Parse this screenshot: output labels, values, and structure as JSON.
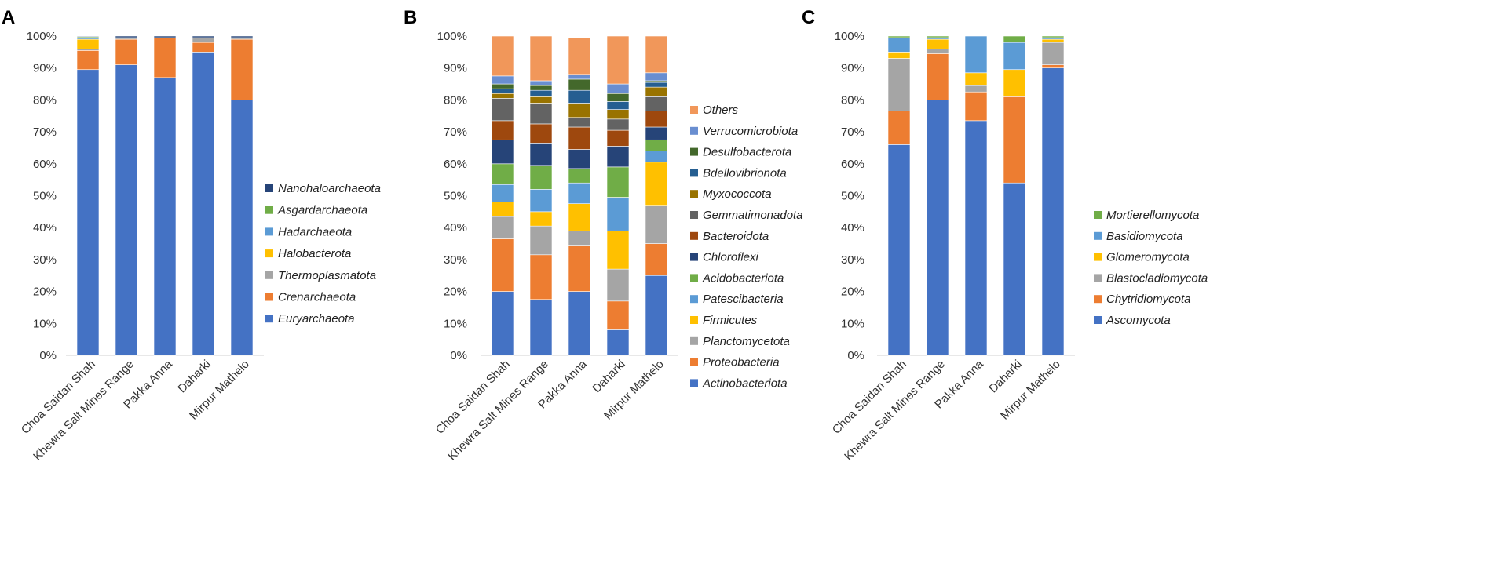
{
  "chart_data": [
    {
      "panel": "A",
      "type": "bar",
      "stacked": true,
      "percent": true,
      "categories": [
        "Choa Saidan Shah",
        "Khewra Salt Mines Range",
        "Pakka Anna",
        "Daharki",
        "Mirpur Mathelo"
      ],
      "yticks": [
        "0%",
        "10%",
        "20%",
        "30%",
        "40%",
        "50%",
        "60%",
        "70%",
        "80%",
        "90%",
        "100%"
      ],
      "ylim": [
        0,
        100
      ],
      "series": [
        {
          "name": "Euryarchaeota",
          "color": "#4472C4",
          "values": [
            89.5,
            91,
            87,
            95,
            80
          ]
        },
        {
          "name": "Crenarchaeota",
          "color": "#ED7D31",
          "values": [
            6,
            8,
            12.5,
            3,
            19
          ]
        },
        {
          "name": "Thermoplasmatota",
          "color": "#A5A5A5",
          "values": [
            0.5,
            0.5,
            0,
            1.5,
            0.5
          ]
        },
        {
          "name": "Halobacterota",
          "color": "#FFC000",
          "values": [
            3,
            0,
            0,
            0,
            0
          ]
        },
        {
          "name": "Hadarchaeota",
          "color": "#5B9BD5",
          "values": [
            0.5,
            0,
            0,
            0,
            0
          ]
        },
        {
          "name": "Asgardarchaeota",
          "color": "#70AD47",
          "values": [
            0.3,
            0,
            0,
            0,
            0
          ]
        },
        {
          "name": "Nanohaloarchaeota",
          "color": "#264478",
          "values": [
            0.2,
            0.5,
            0.5,
            0.5,
            0.5
          ]
        }
      ]
    },
    {
      "panel": "B",
      "type": "bar",
      "stacked": true,
      "percent": true,
      "categories": [
        "Choa Saidan Shah",
        "Khewra Salt Mines Range",
        "Pakka Anna",
        "Daharki",
        "Mirpur Mathelo"
      ],
      "yticks": [
        "0%",
        "10%",
        "20%",
        "30%",
        "40%",
        "50%",
        "60%",
        "70%",
        "80%",
        "90%",
        "100%"
      ],
      "ylim": [
        0,
        100
      ],
      "series": [
        {
          "name": "Actinobacteriota",
          "color": "#4472C4",
          "values": [
            20,
            17.5,
            20,
            8,
            25
          ]
        },
        {
          "name": "Proteobacteria",
          "color": "#ED7D31",
          "values": [
            16.5,
            14,
            14.5,
            9,
            10
          ]
        },
        {
          "name": "Planctomycetota",
          "color": "#A5A5A5",
          "values": [
            7,
            9,
            4.5,
            10,
            12
          ]
        },
        {
          "name": "Firmicutes",
          "color": "#FFC000",
          "values": [
            4.5,
            4.5,
            8.5,
            12,
            13.5
          ]
        },
        {
          "name": "Patescibacteria",
          "color": "#5B9BD5",
          "values": [
            5.5,
            7,
            6.5,
            10.5,
            3.5
          ]
        },
        {
          "name": "Acidobacteriota",
          "color": "#70AD47",
          "values": [
            6.5,
            7.5,
            4.5,
            9.5,
            3.5
          ]
        },
        {
          "name": "Chloroflexi",
          "color": "#264478",
          "values": [
            7.5,
            7,
            6,
            6.5,
            4
          ]
        },
        {
          "name": "Bacteroidota",
          "color": "#9E480E",
          "values": [
            6,
            6,
            7,
            5,
            5
          ]
        },
        {
          "name": "Gemmatimonadota",
          "color": "#636363",
          "values": [
            7,
            6.5,
            3,
            3.5,
            4.5
          ]
        },
        {
          "name": "Myxococcota",
          "color": "#997300",
          "values": [
            1.5,
            2,
            4.5,
            3,
            3
          ]
        },
        {
          "name": "Bdellovibrionota",
          "color": "#255E91",
          "values": [
            1.5,
            2,
            4,
            2.5,
            1.5
          ]
        },
        {
          "name": "Desulfobacterota",
          "color": "#43682B",
          "values": [
            1.5,
            1.5,
            3.5,
            2.5,
            0.5
          ]
        },
        {
          "name": "Verrucomicrobiota",
          "color": "#698ED0",
          "values": [
            2.5,
            1.5,
            1.5,
            3,
            2.5
          ]
        },
        {
          "name": "Others",
          "color": "#F1975A",
          "values": [
            12.5,
            14,
            11.5,
            15,
            11.5
          ]
        }
      ]
    },
    {
      "panel": "C",
      "type": "bar",
      "stacked": true,
      "percent": true,
      "categories": [
        "Choa Saidan Shah",
        "Khewra Salt Mines Range",
        "Pakka Anna",
        "Daharki",
        "Mirpur Mathelo"
      ],
      "yticks": [
        "0%",
        "10%",
        "20%",
        "30%",
        "40%",
        "50%",
        "60%",
        "70%",
        "80%",
        "90%",
        "100%"
      ],
      "ylim": [
        0,
        100
      ],
      "series": [
        {
          "name": "Ascomycota",
          "color": "#4472C4",
          "values": [
            66,
            80,
            73.5,
            54,
            90
          ]
        },
        {
          "name": "Chytridiomycota",
          "color": "#ED7D31",
          "values": [
            10.5,
            14.5,
            9,
            27,
            1
          ]
        },
        {
          "name": "Blastocladiomycota",
          "color": "#A5A5A5",
          "values": [
            16.5,
            1.5,
            2,
            0,
            7
          ]
        },
        {
          "name": "Glomeromycota",
          "color": "#FFC000",
          "values": [
            2,
            3,
            4,
            8.5,
            1
          ]
        },
        {
          "name": "Basidiomycota",
          "color": "#5B9BD5",
          "values": [
            4.5,
            0.5,
            11.5,
            8.5,
            0.5
          ]
        },
        {
          "name": "Mortierellomycota",
          "color": "#70AD47",
          "values": [
            0.5,
            0.5,
            0,
            2,
            0.5
          ]
        }
      ]
    }
  ]
}
